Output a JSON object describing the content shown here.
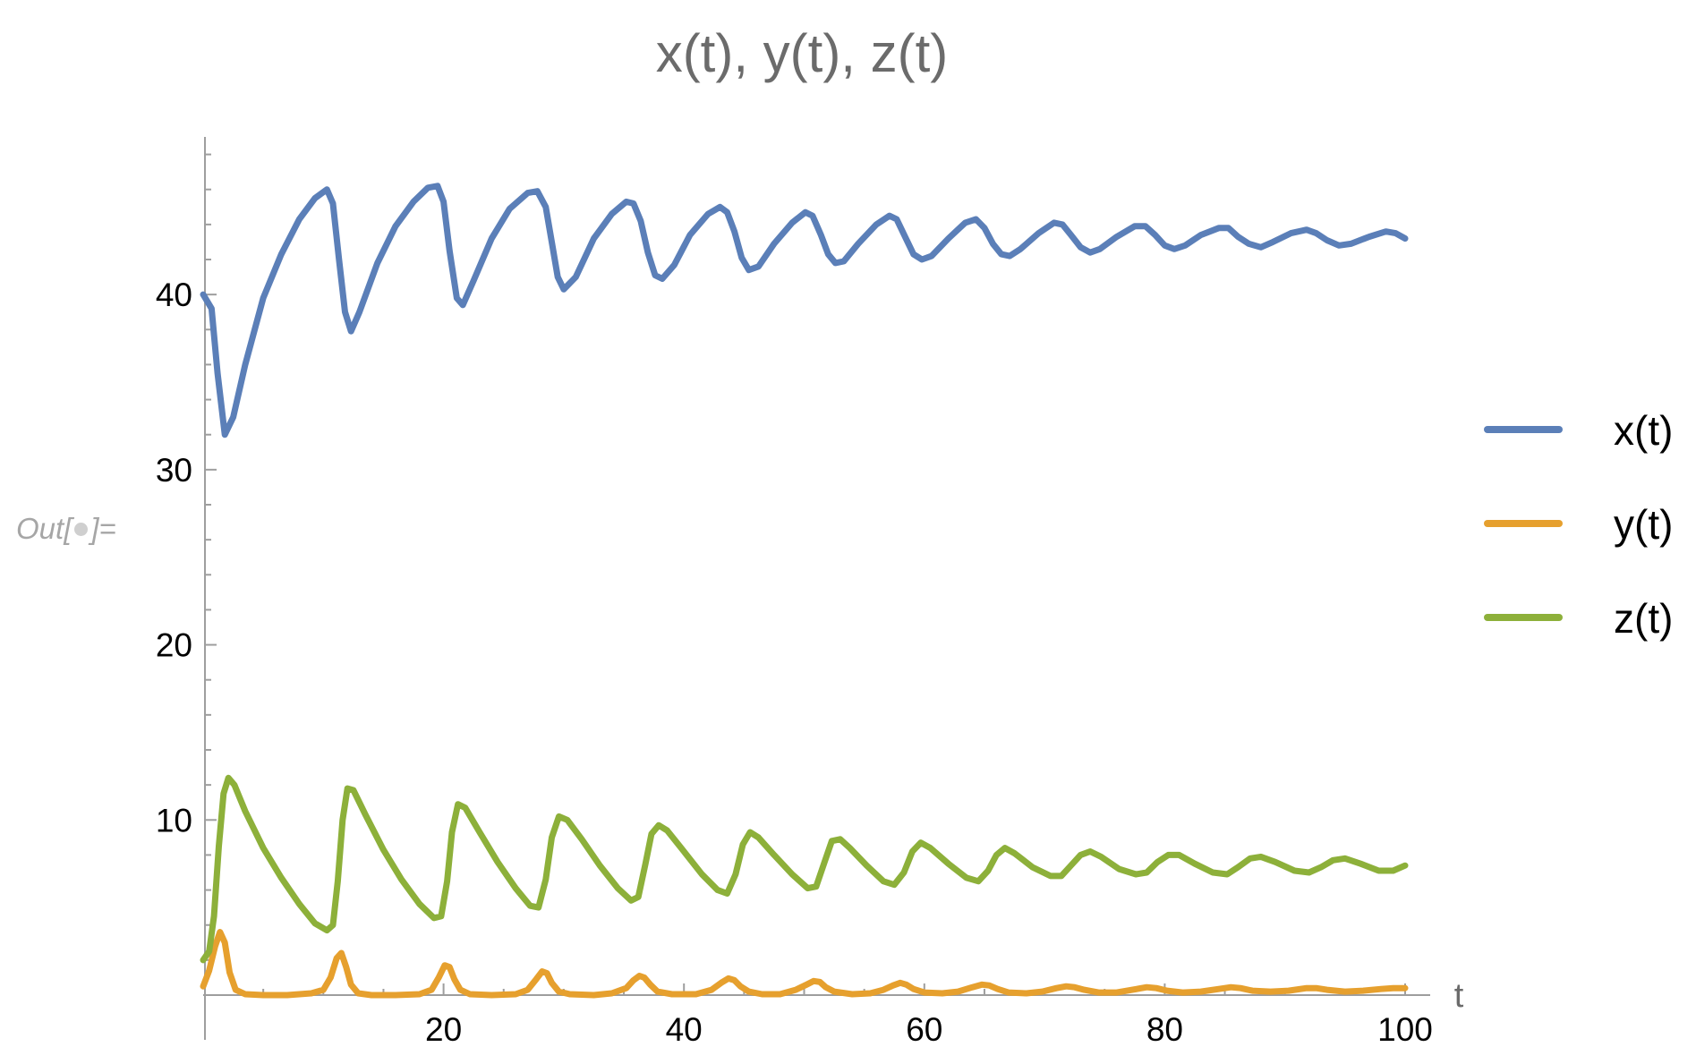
{
  "notebook": {
    "out_prefix": "Out[",
    "out_suffix": "]="
  },
  "chart_data": {
    "type": "line",
    "title": "x(t), y(t), z(t)",
    "xlabel": "t",
    "ylabel": "",
    "xlim": [
      0,
      100
    ],
    "ylim": [
      0,
      49
    ],
    "x_ticks": [
      20,
      40,
      60,
      80,
      100
    ],
    "y_ticks": [
      10,
      20,
      30,
      40
    ],
    "x_minor_step": 5,
    "y_minor_step": 2,
    "grid": false,
    "legend_position": "right",
    "series": [
      {
        "name": "x(t)",
        "color": "#5b7fb8",
        "points": [
          [
            0,
            40.0
          ],
          [
            0.7,
            39.2
          ],
          [
            1.2,
            35.5
          ],
          [
            1.8,
            32.0
          ],
          [
            2.5,
            33.0
          ],
          [
            3.5,
            36.0
          ],
          [
            5,
            39.8
          ],
          [
            6.5,
            42.3
          ],
          [
            8,
            44.3
          ],
          [
            9.3,
            45.5
          ],
          [
            10.3,
            46.0
          ],
          [
            10.8,
            45.2
          ],
          [
            11.3,
            42.0
          ],
          [
            11.8,
            39.0
          ],
          [
            12.3,
            37.9
          ],
          [
            13,
            39.0
          ],
          [
            14.5,
            41.8
          ],
          [
            16,
            43.9
          ],
          [
            17.5,
            45.3
          ],
          [
            18.7,
            46.1
          ],
          [
            19.5,
            46.2
          ],
          [
            20.0,
            45.3
          ],
          [
            20.5,
            42.5
          ],
          [
            21.1,
            39.8
          ],
          [
            21.6,
            39.4
          ],
          [
            22.5,
            40.8
          ],
          [
            24,
            43.2
          ],
          [
            25.5,
            44.9
          ],
          [
            27,
            45.8
          ],
          [
            27.8,
            45.9
          ],
          [
            28.5,
            45.0
          ],
          [
            29.0,
            43.0
          ],
          [
            29.5,
            41.0
          ],
          [
            30.0,
            40.3
          ],
          [
            31,
            41.0
          ],
          [
            32.5,
            43.2
          ],
          [
            34,
            44.6
          ],
          [
            35.2,
            45.3
          ],
          [
            35.8,
            45.2
          ],
          [
            36.4,
            44.2
          ],
          [
            37.0,
            42.4
          ],
          [
            37.6,
            41.1
          ],
          [
            38.2,
            40.9
          ],
          [
            39.2,
            41.7
          ],
          [
            40.5,
            43.4
          ],
          [
            42,
            44.6
          ],
          [
            43.0,
            45.0
          ],
          [
            43.6,
            44.7
          ],
          [
            44.2,
            43.6
          ],
          [
            44.8,
            42.1
          ],
          [
            45.4,
            41.4
          ],
          [
            46.2,
            41.6
          ],
          [
            47.5,
            42.9
          ],
          [
            49,
            44.1
          ],
          [
            50.1,
            44.7
          ],
          [
            50.7,
            44.5
          ],
          [
            51.4,
            43.4
          ],
          [
            52.0,
            42.3
          ],
          [
            52.6,
            41.8
          ],
          [
            53.3,
            41.9
          ],
          [
            54.5,
            42.9
          ],
          [
            56,
            44.0
          ],
          [
            57.1,
            44.5
          ],
          [
            57.7,
            44.3
          ],
          [
            58.4,
            43.3
          ],
          [
            59.1,
            42.3
          ],
          [
            59.8,
            42.0
          ],
          [
            60.6,
            42.2
          ],
          [
            62,
            43.2
          ],
          [
            63.4,
            44.1
          ],
          [
            64.3,
            44.3
          ],
          [
            65,
            43.8
          ],
          [
            65.7,
            42.9
          ],
          [
            66.4,
            42.3
          ],
          [
            67.1,
            42.2
          ],
          [
            68,
            42.6
          ],
          [
            69.5,
            43.5
          ],
          [
            70.8,
            44.1
          ],
          [
            71.5,
            44.0
          ],
          [
            72.2,
            43.4
          ],
          [
            73,
            42.7
          ],
          [
            73.8,
            42.4
          ],
          [
            74.6,
            42.6
          ],
          [
            76,
            43.3
          ],
          [
            77.5,
            43.9
          ],
          [
            78.4,
            43.9
          ],
          [
            79.2,
            43.4
          ],
          [
            80,
            42.8
          ],
          [
            80.8,
            42.6
          ],
          [
            81.7,
            42.8
          ],
          [
            83,
            43.4
          ],
          [
            84.5,
            43.8
          ],
          [
            85.3,
            43.8
          ],
          [
            86.1,
            43.3
          ],
          [
            87,
            42.9
          ],
          [
            88,
            42.7
          ],
          [
            89,
            43.0
          ],
          [
            90.5,
            43.5
          ],
          [
            91.8,
            43.7
          ],
          [
            92.6,
            43.5
          ],
          [
            93.5,
            43.1
          ],
          [
            94.5,
            42.8
          ],
          [
            95.5,
            42.9
          ],
          [
            97,
            43.3
          ],
          [
            98.4,
            43.6
          ],
          [
            99.2,
            43.5
          ],
          [
            100,
            43.2
          ]
        ]
      },
      {
        "name": "y(t)",
        "color": "#e6a02e",
        "points": [
          [
            0,
            0.5
          ],
          [
            0.5,
            1.4
          ],
          [
            1.0,
            2.8
          ],
          [
            1.4,
            3.6
          ],
          [
            1.8,
            3.0
          ],
          [
            2.2,
            1.3
          ],
          [
            2.7,
            0.3
          ],
          [
            3.5,
            0.05
          ],
          [
            5,
            0.0
          ],
          [
            7,
            0.0
          ],
          [
            9,
            0.1
          ],
          [
            10,
            0.3
          ],
          [
            10.6,
            1.0
          ],
          [
            11.1,
            2.1
          ],
          [
            11.5,
            2.4
          ],
          [
            11.9,
            1.6
          ],
          [
            12.3,
            0.6
          ],
          [
            12.9,
            0.1
          ],
          [
            14,
            0.0
          ],
          [
            16,
            0.0
          ],
          [
            18,
            0.05
          ],
          [
            19,
            0.3
          ],
          [
            19.6,
            1.0
          ],
          [
            20.1,
            1.7
          ],
          [
            20.5,
            1.6
          ],
          [
            20.9,
            0.9
          ],
          [
            21.4,
            0.3
          ],
          [
            22.2,
            0.05
          ],
          [
            24,
            0.0
          ],
          [
            26,
            0.05
          ],
          [
            27,
            0.3
          ],
          [
            27.7,
            0.9
          ],
          [
            28.2,
            1.35
          ],
          [
            28.6,
            1.25
          ],
          [
            29.0,
            0.7
          ],
          [
            29.6,
            0.2
          ],
          [
            30.5,
            0.05
          ],
          [
            32.5,
            0.0
          ],
          [
            34,
            0.1
          ],
          [
            35.2,
            0.4
          ],
          [
            35.8,
            0.85
          ],
          [
            36.3,
            1.1
          ],
          [
            36.7,
            1.0
          ],
          [
            37.2,
            0.6
          ],
          [
            37.8,
            0.2
          ],
          [
            39,
            0.05
          ],
          [
            41,
            0.05
          ],
          [
            42.3,
            0.3
          ],
          [
            43.1,
            0.7
          ],
          [
            43.7,
            0.95
          ],
          [
            44.2,
            0.85
          ],
          [
            44.7,
            0.5
          ],
          [
            45.4,
            0.2
          ],
          [
            46.5,
            0.05
          ],
          [
            48,
            0.05
          ],
          [
            49.3,
            0.3
          ],
          [
            50.2,
            0.6
          ],
          [
            50.8,
            0.8
          ],
          [
            51.3,
            0.75
          ],
          [
            51.8,
            0.45
          ],
          [
            52.5,
            0.2
          ],
          [
            54,
            0.05
          ],
          [
            55.5,
            0.1
          ],
          [
            56.6,
            0.3
          ],
          [
            57.4,
            0.55
          ],
          [
            58.0,
            0.7
          ],
          [
            58.5,
            0.6
          ],
          [
            59.1,
            0.35
          ],
          [
            60,
            0.15
          ],
          [
            61.5,
            0.1
          ],
          [
            62.8,
            0.2
          ],
          [
            64,
            0.45
          ],
          [
            64.8,
            0.6
          ],
          [
            65.4,
            0.55
          ],
          [
            66.1,
            0.35
          ],
          [
            67,
            0.15
          ],
          [
            68.5,
            0.1
          ],
          [
            69.8,
            0.2
          ],
          [
            71,
            0.4
          ],
          [
            71.8,
            0.5
          ],
          [
            72.5,
            0.45
          ],
          [
            73.3,
            0.3
          ],
          [
            74.5,
            0.15
          ],
          [
            76,
            0.15
          ],
          [
            77.3,
            0.3
          ],
          [
            78.5,
            0.45
          ],
          [
            79.3,
            0.4
          ],
          [
            80.2,
            0.25
          ],
          [
            81.5,
            0.15
          ],
          [
            83,
            0.2
          ],
          [
            84.5,
            0.35
          ],
          [
            85.5,
            0.45
          ],
          [
            86.3,
            0.4
          ],
          [
            87.3,
            0.25
          ],
          [
            88.8,
            0.2
          ],
          [
            90.3,
            0.25
          ],
          [
            91.8,
            0.4
          ],
          [
            92.6,
            0.4
          ],
          [
            93.5,
            0.3
          ],
          [
            95,
            0.2
          ],
          [
            96.5,
            0.25
          ],
          [
            98,
            0.35
          ],
          [
            99,
            0.4
          ],
          [
            100,
            0.4
          ]
        ]
      },
      {
        "name": "z(t)",
        "color": "#8db03a",
        "points": [
          [
            0,
            2.0
          ],
          [
            0.5,
            2.5
          ],
          [
            0.9,
            4.5
          ],
          [
            1.3,
            8.5
          ],
          [
            1.7,
            11.5
          ],
          [
            2.1,
            12.4
          ],
          [
            2.6,
            12.0
          ],
          [
            3.5,
            10.5
          ],
          [
            5,
            8.4
          ],
          [
            6.5,
            6.7
          ],
          [
            8,
            5.2
          ],
          [
            9.3,
            4.1
          ],
          [
            10.3,
            3.7
          ],
          [
            10.8,
            4.0
          ],
          [
            11.2,
            6.5
          ],
          [
            11.6,
            10.0
          ],
          [
            12.0,
            11.8
          ],
          [
            12.5,
            11.7
          ],
          [
            13.5,
            10.3
          ],
          [
            15,
            8.3
          ],
          [
            16.5,
            6.6
          ],
          [
            18,
            5.2
          ],
          [
            19.2,
            4.4
          ],
          [
            19.8,
            4.5
          ],
          [
            20.3,
            6.5
          ],
          [
            20.7,
            9.3
          ],
          [
            21.2,
            10.9
          ],
          [
            21.8,
            10.7
          ],
          [
            23,
            9.3
          ],
          [
            24.5,
            7.6
          ],
          [
            26,
            6.1
          ],
          [
            27.2,
            5.1
          ],
          [
            27.9,
            5.0
          ],
          [
            28.5,
            6.6
          ],
          [
            29.0,
            9.0
          ],
          [
            29.6,
            10.2
          ],
          [
            30.3,
            10.0
          ],
          [
            31.5,
            8.9
          ],
          [
            33,
            7.4
          ],
          [
            34.5,
            6.1
          ],
          [
            35.6,
            5.4
          ],
          [
            36.2,
            5.6
          ],
          [
            36.8,
            7.5
          ],
          [
            37.3,
            9.2
          ],
          [
            37.9,
            9.7
          ],
          [
            38.6,
            9.4
          ],
          [
            40,
            8.2
          ],
          [
            41.5,
            6.9
          ],
          [
            42.8,
            6.0
          ],
          [
            43.6,
            5.8
          ],
          [
            44.3,
            6.9
          ],
          [
            44.9,
            8.6
          ],
          [
            45.5,
            9.3
          ],
          [
            46.2,
            9.0
          ],
          [
            47.5,
            8.0
          ],
          [
            49,
            6.9
          ],
          [
            50.3,
            6.1
          ],
          [
            51,
            6.2
          ],
          [
            51.7,
            7.6
          ],
          [
            52.3,
            8.8
          ],
          [
            53,
            8.9
          ],
          [
            53.8,
            8.4
          ],
          [
            55.2,
            7.4
          ],
          [
            56.6,
            6.5
          ],
          [
            57.5,
            6.3
          ],
          [
            58.3,
            7.0
          ],
          [
            59,
            8.2
          ],
          [
            59.7,
            8.7
          ],
          [
            60.5,
            8.4
          ],
          [
            62,
            7.5
          ],
          [
            63.5,
            6.7
          ],
          [
            64.5,
            6.5
          ],
          [
            65.3,
            7.1
          ],
          [
            66,
            8.0
          ],
          [
            66.7,
            8.4
          ],
          [
            67.5,
            8.1
          ],
          [
            69,
            7.3
          ],
          [
            70.5,
            6.8
          ],
          [
            71.4,
            6.8
          ],
          [
            72.2,
            7.4
          ],
          [
            73,
            8.0
          ],
          [
            73.8,
            8.2
          ],
          [
            74.7,
            7.9
          ],
          [
            76.2,
            7.2
          ],
          [
            77.6,
            6.9
          ],
          [
            78.5,
            7.0
          ],
          [
            79.4,
            7.6
          ],
          [
            80.3,
            8.0
          ],
          [
            81.2,
            8.0
          ],
          [
            82.5,
            7.5
          ],
          [
            84,
            7.0
          ],
          [
            85.2,
            6.9
          ],
          [
            86.1,
            7.3
          ],
          [
            87.1,
            7.8
          ],
          [
            88,
            7.9
          ],
          [
            89.2,
            7.6
          ],
          [
            90.8,
            7.1
          ],
          [
            92,
            7.0
          ],
          [
            93,
            7.3
          ],
          [
            94,
            7.7
          ],
          [
            95,
            7.8
          ],
          [
            96.3,
            7.5
          ],
          [
            97.8,
            7.1
          ],
          [
            99,
            7.1
          ],
          [
            100,
            7.4
          ]
        ]
      }
    ]
  }
}
